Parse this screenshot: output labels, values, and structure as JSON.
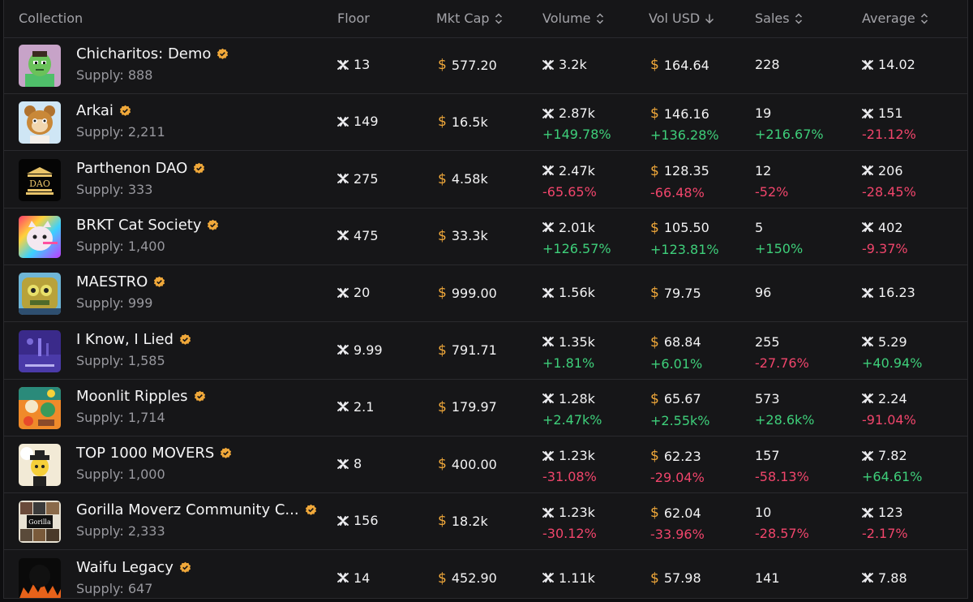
{
  "header": {
    "collection": "Collection",
    "floor": "Floor",
    "mkt_cap": "Mkt Cap",
    "volume": "Volume",
    "vol_usd": "Vol USD",
    "sales": "Sales",
    "average": "Average"
  },
  "colors": {
    "accent": "#f0a83a",
    "up": "#3ecf7a",
    "down": "#f0456b"
  },
  "rows": [
    {
      "name": "Chicharitos: Demo",
      "supply": "Supply: 888",
      "floor": "13",
      "mkt_cap": "577.20",
      "volume": "3.2k",
      "volume_chg": "",
      "vol_usd": "164.64",
      "vol_usd_chg": "",
      "sales": "228",
      "sales_chg": "",
      "average": "14.02",
      "average_chg": ""
    },
    {
      "name": "Arkai",
      "supply": "Supply: 2,211",
      "floor": "149",
      "mkt_cap": "16.5k",
      "volume": "2.87k",
      "volume_chg": "+149.78%",
      "vol_usd": "146.16",
      "vol_usd_chg": "+136.28%",
      "sales": "19",
      "sales_chg": "+216.67%",
      "average": "151",
      "average_chg": "-21.12%"
    },
    {
      "name": "Parthenon DAO",
      "supply": "Supply: 333",
      "floor": "275",
      "mkt_cap": "4.58k",
      "volume": "2.47k",
      "volume_chg": "-65.65%",
      "vol_usd": "128.35",
      "vol_usd_chg": "-66.48%",
      "sales": "12",
      "sales_chg": "-52%",
      "average": "206",
      "average_chg": "-28.45%"
    },
    {
      "name": "BRKT Cat Society",
      "supply": "Supply: 1,400",
      "floor": "475",
      "mkt_cap": "33.3k",
      "volume": "2.01k",
      "volume_chg": "+126.57%",
      "vol_usd": "105.50",
      "vol_usd_chg": "+123.81%",
      "sales": "5",
      "sales_chg": "+150%",
      "average": "402",
      "average_chg": "-9.37%"
    },
    {
      "name": "MAESTRO",
      "supply": "Supply: 999",
      "floor": "20",
      "mkt_cap": "999.00",
      "volume": "1.56k",
      "volume_chg": "",
      "vol_usd": "79.75",
      "vol_usd_chg": "",
      "sales": "96",
      "sales_chg": "",
      "average": "16.23",
      "average_chg": ""
    },
    {
      "name": "I Know, I Lied",
      "supply": "Supply: 1,585",
      "floor": "9.99",
      "mkt_cap": "791.71",
      "volume": "1.35k",
      "volume_chg": "+1.81%",
      "vol_usd": "68.84",
      "vol_usd_chg": "+6.01%",
      "sales": "255",
      "sales_chg": "-27.76%",
      "average": "5.29",
      "average_chg": "+40.94%"
    },
    {
      "name": "Moonlit Ripples",
      "supply": "Supply: 1,714",
      "floor": "2.1",
      "mkt_cap": "179.97",
      "volume": "1.28k",
      "volume_chg": "+2.47k%",
      "vol_usd": "65.67",
      "vol_usd_chg": "+2.55k%",
      "sales": "573",
      "sales_chg": "+28.6k%",
      "average": "2.24",
      "average_chg": "-91.04%"
    },
    {
      "name": "TOP 1000 MOVERS",
      "supply": "Supply: 1,000",
      "floor": "8",
      "mkt_cap": "400.00",
      "volume": "1.23k",
      "volume_chg": "-31.08%",
      "vol_usd": "62.23",
      "vol_usd_chg": "-29.04%",
      "sales": "157",
      "sales_chg": "-58.13%",
      "average": "7.82",
      "average_chg": "+64.61%"
    },
    {
      "name": "Gorilla Moverz Community C...",
      "supply": "Supply: 2,333",
      "floor": "156",
      "mkt_cap": "18.2k",
      "volume": "1.23k",
      "volume_chg": "-30.12%",
      "vol_usd": "62.04",
      "vol_usd_chg": "-33.96%",
      "sales": "10",
      "sales_chg": "-28.57%",
      "average": "123",
      "average_chg": "-2.17%"
    },
    {
      "name": "Waifu Legacy",
      "supply": "Supply: 647",
      "floor": "14",
      "mkt_cap": "452.90",
      "volume": "1.11k",
      "volume_chg": "",
      "vol_usd": "57.98",
      "vol_usd_chg": "",
      "sales": "141",
      "sales_chg": "",
      "average": "7.88",
      "average_chg": ""
    }
  ]
}
